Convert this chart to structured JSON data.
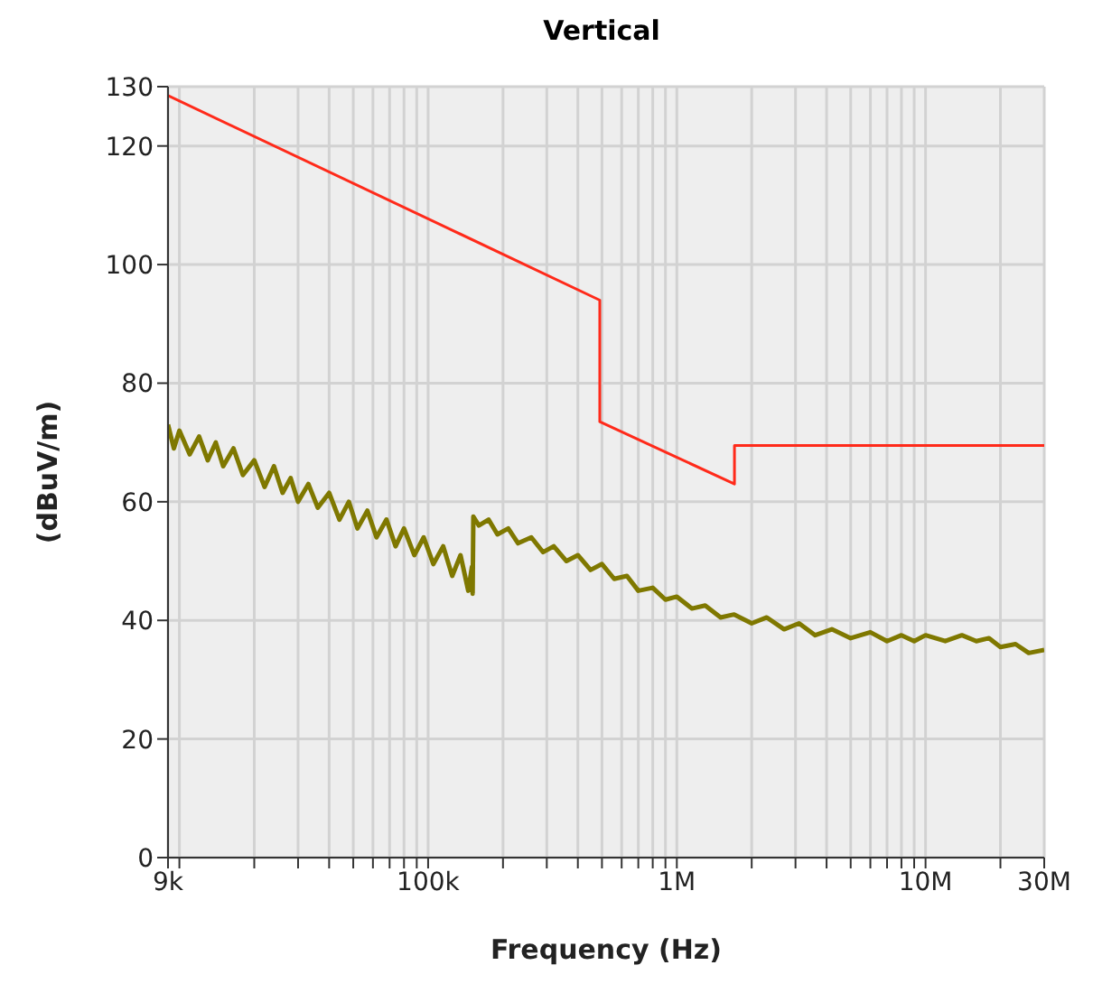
{
  "chart_data": {
    "type": "line",
    "title": "Vertical",
    "xlabel": "Frequency (Hz)",
    "ylabel": "(dBuV/m)",
    "log": "x",
    "grid": true,
    "marker": "none",
    "line_style": "solid",
    "xlim": [
      9000,
      30000000
    ],
    "ylim": [
      0,
      130
    ],
    "xticks": [
      {
        "value": 9000,
        "label": "9k"
      },
      {
        "value": 10000,
        "label": null
      },
      {
        "value": 20000,
        "label": null
      },
      {
        "value": 30000,
        "label": null
      },
      {
        "value": 40000,
        "label": null
      },
      {
        "value": 50000,
        "label": null
      },
      {
        "value": 60000,
        "label": null
      },
      {
        "value": 70000,
        "label": null
      },
      {
        "value": 80000,
        "label": null
      },
      {
        "value": 90000,
        "label": null
      },
      {
        "value": 100000,
        "label": "100k"
      },
      {
        "value": 200000,
        "label": null
      },
      {
        "value": 300000,
        "label": null
      },
      {
        "value": 400000,
        "label": null
      },
      {
        "value": 500000,
        "label": null
      },
      {
        "value": 600000,
        "label": null
      },
      {
        "value": 700000,
        "label": null
      },
      {
        "value": 800000,
        "label": null
      },
      {
        "value": 900000,
        "label": null
      },
      {
        "value": 1000000,
        "label": "1M"
      },
      {
        "value": 2000000,
        "label": null
      },
      {
        "value": 3000000,
        "label": null
      },
      {
        "value": 4000000,
        "label": null
      },
      {
        "value": 5000000,
        "label": null
      },
      {
        "value": 6000000,
        "label": null
      },
      {
        "value": 7000000,
        "label": null
      },
      {
        "value": 8000000,
        "label": null
      },
      {
        "value": 9000000,
        "label": null
      },
      {
        "value": 10000000,
        "label": "10M"
      },
      {
        "value": 20000000,
        "label": null
      },
      {
        "value": 30000000,
        "label": "30M"
      }
    ],
    "yticks": [
      0,
      20,
      40,
      60,
      80,
      100,
      120,
      130
    ],
    "series": [
      {
        "color": "#ff2a1a",
        "x": [
          9000,
          490000,
          490000,
          1705000,
          1705000,
          30000000
        ],
        "values": [
          128.5,
          94,
          73.5,
          63,
          69.5,
          69.5
        ]
      },
      {
        "color": "#7f7800",
        "x": [
          9000,
          9500,
          10000,
          11000,
          12000,
          13000,
          14000,
          15000,
          16500,
          18000,
          20000,
          22000,
          24000,
          26000,
          28000,
          30000,
          33000,
          36000,
          40000,
          44000,
          48000,
          52000,
          57000,
          62000,
          68000,
          74000,
          80000,
          88000,
          96000,
          105000,
          115000,
          125000,
          135000,
          145000,
          150000,
          151000,
          152000,
          160000,
          175000,
          190000,
          210000,
          230000,
          260000,
          290000,
          320000,
          360000,
          400000,
          450000,
          500000,
          560000,
          630000,
          700000,
          800000,
          900000,
          1000000,
          1150000,
          1300000,
          1500000,
          1700000,
          2000000,
          2300000,
          2700000,
          3100000,
          3600000,
          4200000,
          5000000,
          6000000,
          7000000,
          8000000,
          9000000,
          10000000,
          12000000,
          14000000,
          16000000,
          18000000,
          20000000,
          23000000,
          26000000,
          30000000
        ],
        "values": [
          73,
          69,
          72,
          68,
          71,
          67,
          70,
          66,
          69,
          64.5,
          67,
          62.5,
          66,
          61.5,
          64,
          60,
          63,
          59,
          61.5,
          57,
          60,
          55.5,
          58.5,
          54,
          57,
          52.5,
          55.5,
          51,
          54,
          49.5,
          52.5,
          47.5,
          51,
          45,
          49,
          44.5,
          57.5,
          56,
          57,
          54.5,
          55.5,
          53,
          54,
          51.5,
          52.5,
          50,
          51,
          48.5,
          49.5,
          47,
          47.5,
          45,
          45.5,
          43.5,
          44,
          42,
          42.5,
          40.5,
          41,
          39.5,
          40.5,
          38.5,
          39.5,
          37.5,
          38.5,
          37,
          38,
          36.5,
          37.5,
          36.5,
          37.5,
          36.5,
          37.5,
          36.5,
          37,
          35.5,
          36,
          34.5,
          35
        ]
      }
    ]
  }
}
